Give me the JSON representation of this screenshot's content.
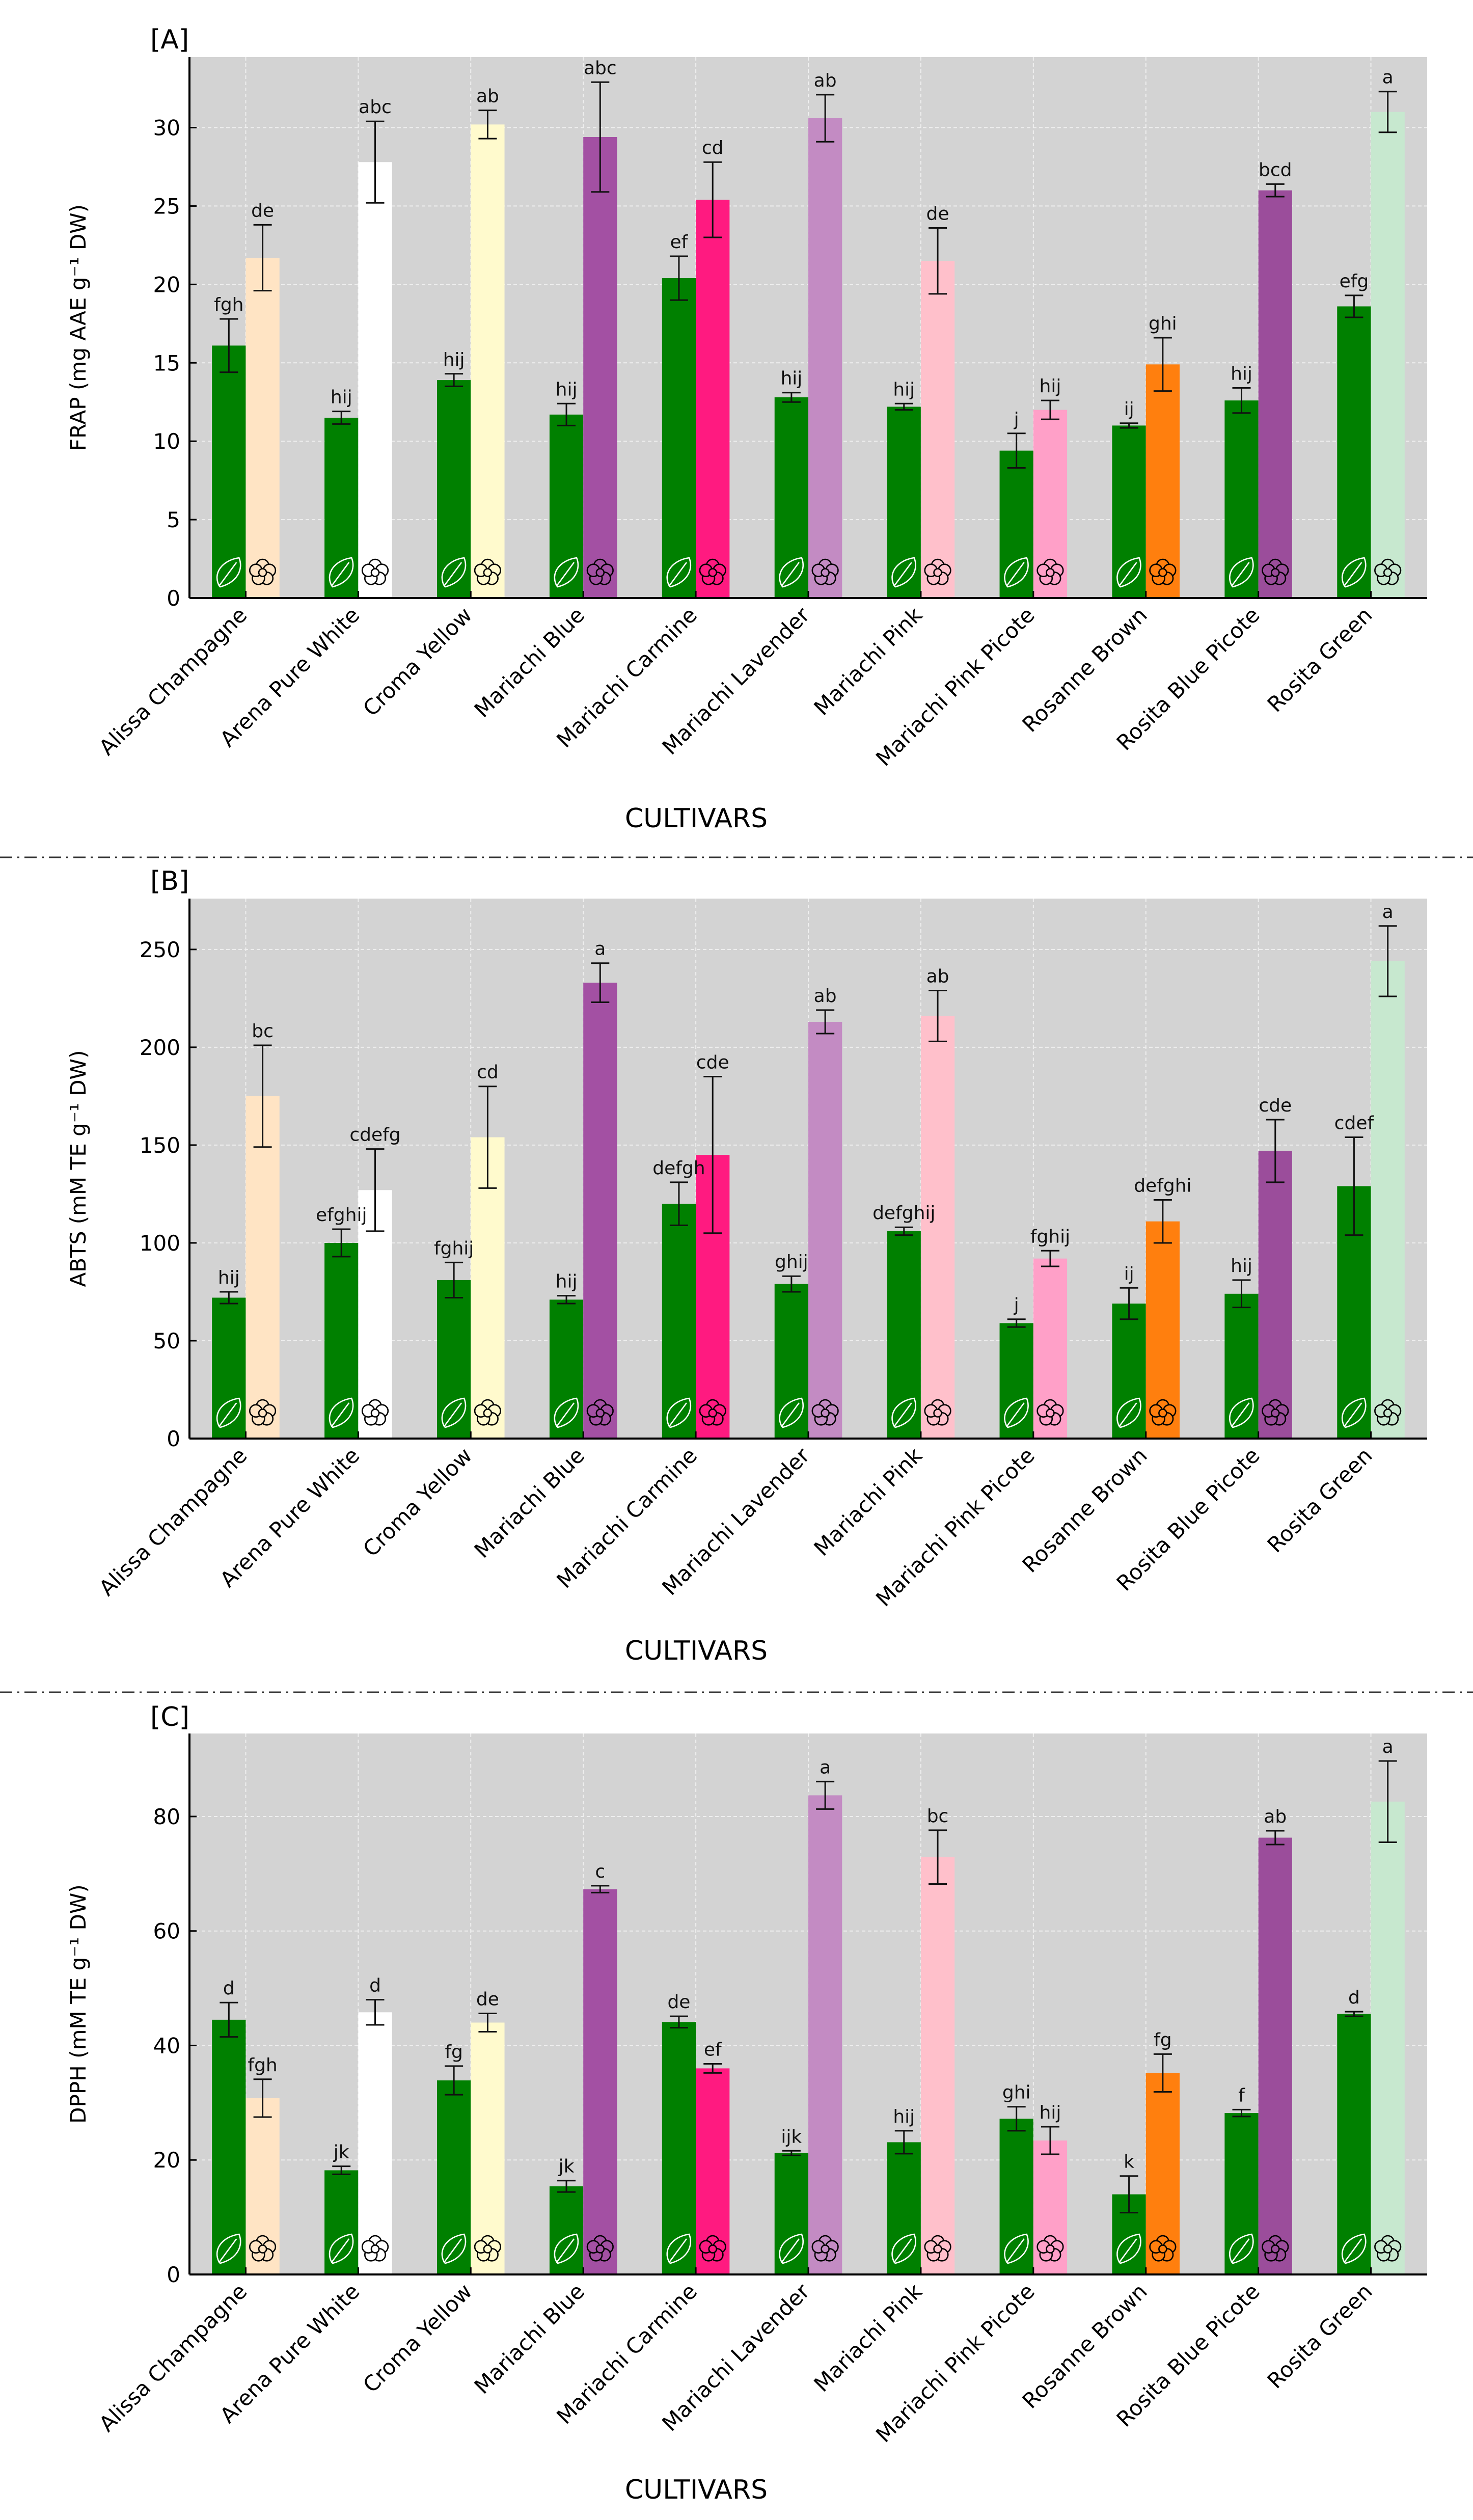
{
  "figure": {
    "colors": {
      "leaf": "#008000",
      "plot_bg": "#d3d3d3",
      "grid": "#efefef",
      "flowers": [
        "#ffe4c4",
        "#ffffff",
        "#fffacd",
        "#a350a3",
        "#ff1a80",
        "#c38bc3",
        "#ffc0cb",
        "#ffa0c8",
        "#ff7f0e",
        "#9b4d9b",
        "#c7e8cf"
      ]
    },
    "icons": {
      "leaf": "leaf-icon",
      "flower": "flower-icon"
    },
    "divider": "dash-dot"
  },
  "chart_data": [
    {
      "type": "bar",
      "panel_label": "[A]",
      "ylabel": "FRAP (mg AAE g⁻¹ DW)",
      "xlabel": "CULTIVARS",
      "ylim": [
        0,
        34.5
      ],
      "yticks": [
        0,
        5,
        10,
        15,
        20,
        25,
        30
      ],
      "grid": true,
      "categories": [
        "Alissa Champagne",
        "Arena Pure White",
        "Croma Yellow",
        "Mariachi Blue",
        "Mariachi Carmine",
        "Mariachi Lavender",
        "Mariachi Pink",
        "Mariachi Pink Picote",
        "Rosanne Brown",
        "Rosita Blue Picote",
        "Rosita Green"
      ],
      "series": [
        {
          "name": "Leaf",
          "values": [
            16.1,
            11.5,
            13.9,
            11.7,
            20.4,
            12.8,
            12.2,
            9.4,
            11.0,
            12.6,
            18.6
          ],
          "errors": [
            1.7,
            0.4,
            0.4,
            0.7,
            1.4,
            0.3,
            0.2,
            1.1,
            0.15,
            0.8,
            0.7
          ],
          "letters": [
            "fgh",
            "hij",
            "hij",
            "hij",
            "ef",
            "hij",
            "hij",
            "j",
            "ij",
            "hij",
            "efg"
          ]
        },
        {
          "name": "Flower",
          "values": [
            21.7,
            27.8,
            30.2,
            29.4,
            25.4,
            30.6,
            21.5,
            12.0,
            14.9,
            26.0,
            31.0
          ],
          "errors": [
            2.1,
            2.6,
            0.9,
            3.5,
            2.4,
            1.5,
            2.1,
            0.6,
            1.7,
            0.4,
            1.3
          ],
          "letters": [
            "de",
            "abc",
            "ab",
            "abc",
            "cd",
            "ab",
            "de",
            "hij",
            "ghi",
            "bcd",
            "a"
          ]
        }
      ]
    },
    {
      "type": "bar",
      "panel_label": "[B]",
      "ylabel": "ABTS (mM TE g⁻¹ DW)",
      "xlabel": "CULTIVARS",
      "ylim": [
        0,
        276
      ],
      "yticks": [
        0,
        50,
        100,
        150,
        200,
        250
      ],
      "grid": true,
      "categories": [
        "Alissa Champagne",
        "Arena Pure White",
        "Croma Yellow",
        "Mariachi Blue",
        "Mariachi Carmine",
        "Mariachi Lavender",
        "Mariachi Pink",
        "Mariachi Pink Picote",
        "Rosanne Brown",
        "Rosita Blue Picote",
        "Rosita Green"
      ],
      "series": [
        {
          "name": "Leaf",
          "values": [
            72,
            100,
            81,
            71,
            120,
            79,
            106,
            59,
            69,
            74,
            129
          ],
          "errors": [
            3,
            7,
            9,
            2,
            11,
            4,
            2,
            2,
            8,
            7,
            25
          ],
          "letters": [
            "hij",
            "efghij",
            "fghij",
            "hij",
            "defgh",
            "ghij",
            "defghij",
            "j",
            "ij",
            "hij",
            "cdef"
          ]
        },
        {
          "name": "Flower",
          "values": [
            175,
            127,
            154,
            233,
            145,
            213,
            216,
            92,
            111,
            147,
            244
          ],
          "errors": [
            26,
            21,
            26,
            10,
            40,
            6,
            13,
            4,
            11,
            16,
            18
          ],
          "letters": [
            "bc",
            "cdefg",
            "cd",
            "a",
            "cde",
            "ab",
            "ab",
            "fghij",
            "defghi",
            "cde",
            "a"
          ]
        }
      ]
    },
    {
      "type": "bar",
      "panel_label": "[C]",
      "ylabel": "DPPH (mM TE g⁻¹ DW)",
      "xlabel": "CULTIVARS",
      "ylim": [
        0,
        94.5
      ],
      "yticks": [
        0,
        20,
        40,
        60,
        80
      ],
      "grid": true,
      "categories": [
        "Alissa Champagne",
        "Arena Pure White",
        "Croma Yellow",
        "Mariachi Blue",
        "Mariachi Carmine",
        "Mariachi Lavender",
        "Mariachi Pink",
        "Mariachi Pink Picote",
        "Rosanne Brown",
        "Rosita Blue Picote",
        "Rosita Green"
      ],
      "series": [
        {
          "name": "Leaf",
          "values": [
            44.5,
            18.2,
            33.9,
            15.4,
            44.1,
            21.2,
            23.1,
            27.2,
            14.0,
            28.2,
            45.5
          ],
          "errors": [
            3.0,
            0.7,
            2.5,
            1.0,
            1.0,
            0.4,
            2.0,
            2.1,
            3.2,
            0.6,
            0.4
          ],
          "letters": [
            "d",
            "jk",
            "fg",
            "jk",
            "de",
            "ijk",
            "hij",
            "ghi",
            "k",
            "f",
            "d"
          ]
        },
        {
          "name": "Flower",
          "values": [
            30.8,
            45.8,
            44.0,
            67.3,
            36.0,
            83.7,
            72.9,
            23.4,
            35.2,
            76.3,
            82.6
          ],
          "errors": [
            3.3,
            2.2,
            1.6,
            0.6,
            0.8,
            2.4,
            4.7,
            2.4,
            3.3,
            1.2,
            7.1
          ],
          "letters": [
            "fgh",
            "d",
            "de",
            "c",
            "ef",
            "a",
            "bc",
            "hij",
            "fg",
            "ab",
            "a"
          ]
        }
      ]
    }
  ]
}
